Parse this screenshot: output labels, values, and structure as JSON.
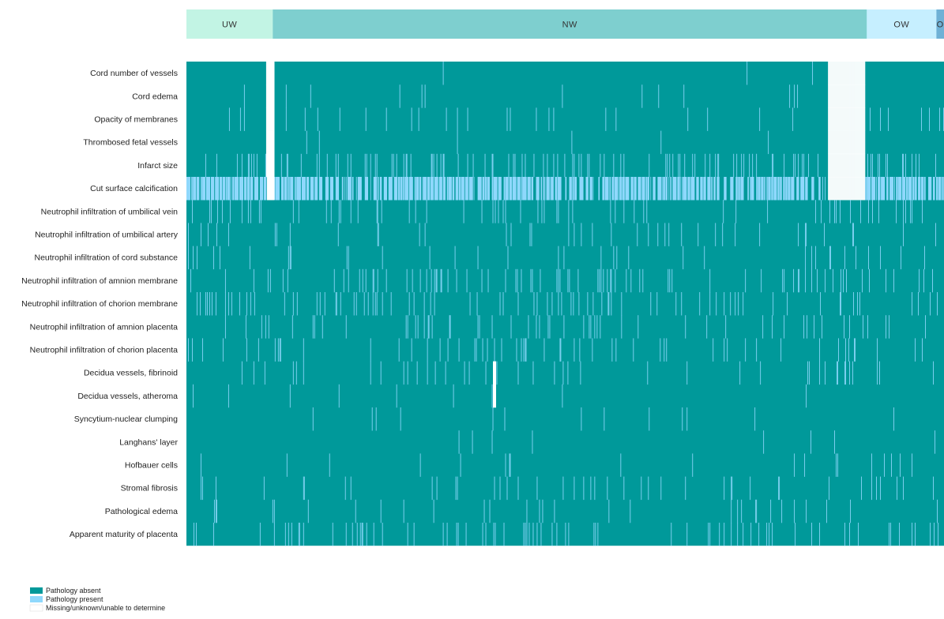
{
  "colors": {
    "absent": "#00999a",
    "present": "#8fd8fc",
    "missing": "#ffffff",
    "group_UW": "#c2f4e4",
    "group_NW": "#7ecfcf",
    "group_OW": "#c6efff",
    "group_O": "#6fb1d6"
  },
  "chart_data": {
    "type": "heatmap",
    "title": "",
    "xlabel": "",
    "ylabel": "",
    "groups": [
      {
        "label": "UW",
        "share": 0.114
      },
      {
        "label": "NW",
        "share": 0.784
      },
      {
        "label": "OW",
        "share": 0.092
      },
      {
        "label": "O",
        "share": 0.01
      }
    ],
    "rows": [
      {
        "label": "Cord number of vessels",
        "present_rate": 0.005
      },
      {
        "label": "Cord edema",
        "present_rate": 0.01
      },
      {
        "label": "Opacity of membranes",
        "present_rate": 0.04
      },
      {
        "label": "Thrombosed fetal vessels",
        "present_rate": 0.005
      },
      {
        "label": "Infarct size",
        "present_rate": 0.12
      },
      {
        "label": "Cut surface calcification",
        "present_rate": 0.65
      },
      {
        "label": "Neutrophil infiltration of umbilical vein",
        "present_rate": 0.06
      },
      {
        "label": "Neutrophil infiltration of umbilical artery",
        "present_rate": 0.04
      },
      {
        "label": "Neutrophil infiltration of cord substance",
        "present_rate": 0.04
      },
      {
        "label": "Neutrophil infiltration of amnion membrane",
        "present_rate": 0.08
      },
      {
        "label": "Neutrophil infiltration of chorion membrane",
        "present_rate": 0.08
      },
      {
        "label": "Neutrophil infiltration of amnion placenta",
        "present_rate": 0.05
      },
      {
        "label": "Neutrophil infiltration of chorion placenta",
        "present_rate": 0.05
      },
      {
        "label": "Decidua vessels, fibrinoid",
        "present_rate": 0.04
      },
      {
        "label": "Decidua vessels, atheroma",
        "present_rate": 0.01
      },
      {
        "label": "Syncytium-nuclear clumping",
        "present_rate": 0.02
      },
      {
        "label": "Langhans' layer",
        "present_rate": 0.01
      },
      {
        "label": "Hofbauer cells",
        "present_rate": 0.02
      },
      {
        "label": "Stromal fibrosis",
        "present_rate": 0.04
      },
      {
        "label": "Pathological edema",
        "present_rate": 0.04
      },
      {
        "label": "Apparent maturity of placenta",
        "present_rate": 0.06
      }
    ],
    "legend": [
      {
        "label": "Pathology absent",
        "color": "#00999a"
      },
      {
        "label": "Pathology present",
        "color": "#8fd8fc"
      },
      {
        "label": "Missing/unknown/unable to determine",
        "color": "#ffffff"
      }
    ],
    "legend_position": "bottom-left"
  }
}
